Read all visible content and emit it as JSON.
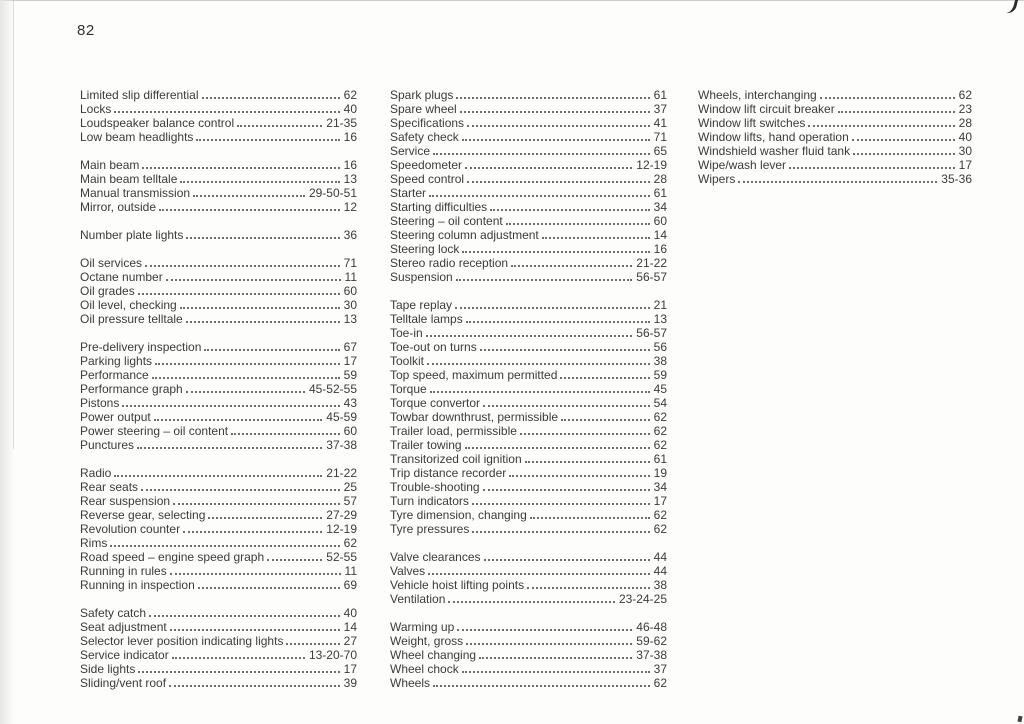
{
  "page": {
    "number": "82"
  },
  "colors": {
    "ink": "#3b3b3b",
    "paper": "#fdfdfc"
  },
  "index": {
    "columns": [
      {
        "groups": [
          [
            {
              "label": "Limited slip differential",
              "page": "62"
            },
            {
              "label": "Locks",
              "page": "40"
            },
            {
              "label": "Loudspeaker balance control",
              "page": "21-35"
            },
            {
              "label": "Low beam headlights",
              "page": "16"
            }
          ],
          [
            {
              "label": "Main beam",
              "page": "16"
            },
            {
              "label": "Main beam telltale",
              "page": "13"
            },
            {
              "label": "Manual transmission",
              "page": "29-50-51"
            },
            {
              "label": "Mirror, outside",
              "page": "12"
            }
          ],
          [
            {
              "label": "Number plate lights",
              "page": "36"
            }
          ],
          [
            {
              "label": "Oil services",
              "page": "71"
            },
            {
              "label": "Octane number",
              "page": "11"
            },
            {
              "label": "Oil grades",
              "page": "60"
            },
            {
              "label": "Oil level, checking",
              "page": "30"
            },
            {
              "label": "Oil pressure telltale",
              "page": "13"
            }
          ],
          [
            {
              "label": "Pre-delivery inspection",
              "page": "67"
            },
            {
              "label": "Parking lights",
              "page": "17"
            },
            {
              "label": "Performance",
              "page": "59"
            },
            {
              "label": "Performance graph",
              "page": "45-52-55"
            },
            {
              "label": "Pistons",
              "page": "43"
            },
            {
              "label": "Power output",
              "page": "45-59"
            },
            {
              "label": "Power steering – oil content",
              "page": "60"
            },
            {
              "label": "Punctures",
              "page": "37-38"
            }
          ],
          [
            {
              "label": "Radio",
              "page": "21-22"
            },
            {
              "label": "Rear seats",
              "page": "25"
            },
            {
              "label": "Rear suspension",
              "page": "57"
            },
            {
              "label": "Reverse gear, selecting",
              "page": "27-29"
            },
            {
              "label": "Revolution counter",
              "page": "12-19"
            },
            {
              "label": "Rims",
              "page": "62"
            },
            {
              "label": "Road speed – engine speed graph",
              "page": "52-55"
            },
            {
              "label": "Running in rules",
              "page": "11"
            },
            {
              "label": "Running in inspection",
              "page": "69"
            }
          ],
          [
            {
              "label": "Safety catch",
              "page": "40"
            },
            {
              "label": "Seat adjustment",
              "page": "14"
            },
            {
              "label": "Selector lever position indicating lights",
              "page": "27"
            },
            {
              "label": "Service indicator",
              "page": "13-20-70"
            },
            {
              "label": "Side lights",
              "page": "17"
            },
            {
              "label": "Sliding/vent roof",
              "page": "39"
            }
          ]
        ]
      },
      {
        "groups": [
          [
            {
              "label": "Spark plugs",
              "page": "61"
            },
            {
              "label": "Spare wheel",
              "page": "37"
            },
            {
              "label": "Specifications",
              "page": "41"
            },
            {
              "label": "Safety check",
              "page": "71"
            },
            {
              "label": "Service",
              "page": "65"
            },
            {
              "label": "Speedometer",
              "page": "12-19"
            },
            {
              "label": "Speed control",
              "page": "28"
            },
            {
              "label": "Starter",
              "page": "61"
            },
            {
              "label": "Starting difficulties",
              "page": "34"
            },
            {
              "label": "Steering – oil content",
              "page": "60"
            },
            {
              "label": "Steering column adjustment",
              "page": "14"
            },
            {
              "label": "Steering lock",
              "page": "16"
            },
            {
              "label": "Stereo radio reception",
              "page": "21-22"
            },
            {
              "label": "Suspension",
              "page": "56-57"
            }
          ],
          [
            {
              "label": "Tape replay",
              "page": "21"
            },
            {
              "label": "Telltale lamps",
              "page": "13"
            },
            {
              "label": "Toe-in",
              "page": "56-57"
            },
            {
              "label": "Toe-out on turns",
              "page": "56"
            },
            {
              "label": "Toolkit",
              "page": "38"
            },
            {
              "label": "Top speed, maximum permitted",
              "page": "59"
            },
            {
              "label": "Torque",
              "page": "45"
            },
            {
              "label": "Torque convertor",
              "page": "54"
            },
            {
              "label": "Towbar downthrust, permissible",
              "page": "62"
            },
            {
              "label": "Trailer load, permissible",
              "page": "62"
            },
            {
              "label": "Trailer towing",
              "page": "62"
            },
            {
              "label": "Transitorized coil ignition",
              "page": "61"
            },
            {
              "label": "Trip distance recorder",
              "page": "19"
            },
            {
              "label": "Trouble-shooting",
              "page": "34"
            },
            {
              "label": "Turn indicators",
              "page": "17"
            },
            {
              "label": "Tyre dimension, changing",
              "page": "62"
            },
            {
              "label": "Tyre pressures",
              "page": "62"
            }
          ],
          [
            {
              "label": "Valve clearances",
              "page": "44"
            },
            {
              "label": "Valves",
              "page": "44"
            },
            {
              "label": "Vehicle hoist lifting points",
              "page": "38"
            },
            {
              "label": "Ventilation",
              "page": "23-24-25"
            }
          ],
          [
            {
              "label": "Warming up",
              "page": "46-48"
            },
            {
              "label": "Weight, gross",
              "page": "59-62"
            },
            {
              "label": "Wheel changing",
              "page": "37-38"
            },
            {
              "label": "Wheel chock",
              "page": "37"
            },
            {
              "label": "Wheels",
              "page": "62"
            }
          ]
        ]
      },
      {
        "groups": [
          [
            {
              "label": "Wheels, interchanging",
              "page": "62"
            },
            {
              "label": "Window lift circuit breaker",
              "page": "23"
            },
            {
              "label": "Window lift switches",
              "page": "28"
            },
            {
              "label": "Window lifts, hand operation",
              "page": "40"
            },
            {
              "label": "Windshield washer fluid tank",
              "page": "30"
            },
            {
              "label": "Wipe/wash lever",
              "page": "17"
            },
            {
              "label": "Wipers",
              "page": "35-36"
            }
          ]
        ]
      }
    ]
  }
}
